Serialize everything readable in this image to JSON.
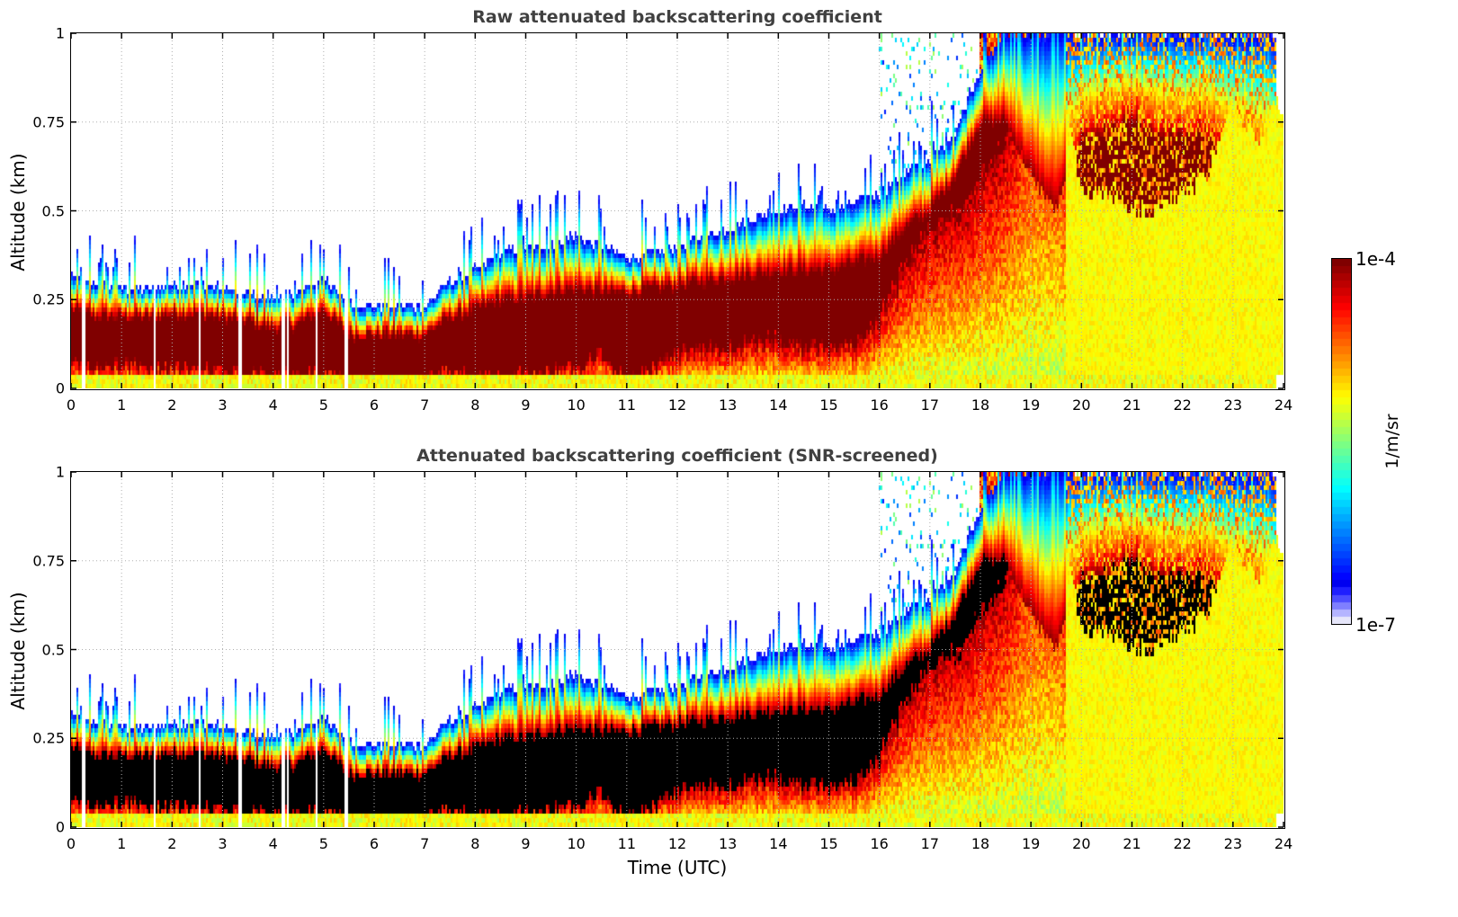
{
  "figure": {
    "xlabel": "Time (UTC)",
    "colorbar": {
      "max_label": "1e-4",
      "min_label": "1e-7",
      "unit_label": "1/m/sr",
      "colormap": "jet",
      "scale": "log",
      "levels": 50,
      "low_colors": [
        "#e6e6fa",
        "#b4b4ff",
        "#7f7fff",
        "#4d4dff",
        "#1f1fff"
      ],
      "saturated_color": "#800000",
      "screened_color": "#000000"
    }
  },
  "chart_data": [
    {
      "type": "heatmap",
      "title": "Raw attenuated backscattering coefficient",
      "xlabel": "",
      "ylabel": "Altitude (km)",
      "xlim": [
        0,
        24
      ],
      "ylim": [
        0,
        1
      ],
      "xticks": [
        "0",
        "1",
        "2",
        "3",
        "4",
        "5",
        "6",
        "7",
        "8",
        "9",
        "10",
        "11",
        "12",
        "13",
        "14",
        "15",
        "16",
        "17",
        "18",
        "19",
        "20",
        "21",
        "22",
        "23",
        "24"
      ],
      "yticks": [
        "0",
        "0.25",
        "0.5",
        "0.75",
        "1"
      ],
      "grid": true,
      "screened": false,
      "time_h": [
        0,
        0.5,
        1,
        1.5,
        2,
        2.5,
        3,
        3.5,
        4,
        4.5,
        5,
        5.5,
        6,
        6.5,
        7,
        7.5,
        8,
        8.5,
        9,
        9.5,
        10,
        10.5,
        11,
        11.5,
        12,
        12.5,
        13,
        13.5,
        14,
        14.5,
        15,
        15.5,
        16,
        16.5,
        17,
        17.5,
        18,
        18.5,
        19,
        19.5,
        20,
        20.5,
        21,
        21.5,
        22,
        22.5,
        23,
        23.5,
        23.85
      ],
      "layer_top_km": [
        0.32,
        0.29,
        0.28,
        0.28,
        0.29,
        0.3,
        0.28,
        0.27,
        0.26,
        0.27,
        0.31,
        0.24,
        0.23,
        0.23,
        0.23,
        0.3,
        0.33,
        0.38,
        0.4,
        0.4,
        0.43,
        0.4,
        0.37,
        0.38,
        0.4,
        0.43,
        0.45,
        0.48,
        0.5,
        0.52,
        0.5,
        0.52,
        0.55,
        0.6,
        0.65,
        0.72,
        0.9,
        1.0,
        1.0,
        1.0,
        1.0,
        1.0,
        1.0,
        1.0,
        1.0,
        1.0,
        1.0,
        1.0,
        1.0
      ],
      "core_top_km": [
        0.22,
        0.2,
        0.2,
        0.2,
        0.21,
        0.21,
        0.2,
        0.19,
        0.17,
        0.18,
        0.22,
        0.15,
        0.15,
        0.15,
        0.15,
        0.2,
        0.22,
        0.25,
        0.25,
        0.27,
        0.28,
        0.27,
        0.27,
        0.28,
        0.29,
        0.3,
        0.31,
        0.32,
        0.33,
        0.33,
        0.33,
        0.35,
        0.37,
        0.45,
        0.5,
        0.6,
        0.75,
        0.75,
        0.6,
        0.5,
        0.7,
        0.72,
        0.75,
        0.7,
        0.7,
        0.7,
        0.65,
        0.6,
        0.55
      ],
      "core_base_km": [
        0.08,
        0.07,
        0.07,
        0.06,
        0.06,
        0.05,
        0.05,
        0.04,
        0.04,
        0.04,
        0.05,
        0.01,
        0.02,
        0.02,
        0.02,
        0.05,
        0.03,
        0.03,
        0.04,
        0.05,
        0.05,
        0.1,
        0.02,
        0.05,
        0.1,
        0.12,
        0.12,
        0.13,
        0.14,
        0.12,
        0.12,
        0.13,
        0.2,
        0.35,
        0.45,
        0.5,
        0.6,
        0.7,
        1.0,
        1.0,
        0.55,
        0.55,
        0.5,
        0.5,
        0.55,
        0.6,
        0.8,
        0.7,
        0.8
      ],
      "note_gaps_h": [
        0.25,
        1.65,
        2.55,
        3.35,
        4.2,
        4.3,
        4.85,
        5.45
      ]
    },
    {
      "type": "heatmap",
      "title": "Attenuated backscattering coefficient (SNR-screened)",
      "xlabel": "Time (UTC)",
      "ylabel": "Altitude (km)",
      "xlim": [
        0,
        24
      ],
      "ylim": [
        0,
        1
      ],
      "xticks": [
        "0",
        "1",
        "2",
        "3",
        "4",
        "5",
        "6",
        "7",
        "8",
        "9",
        "10",
        "11",
        "12",
        "13",
        "14",
        "15",
        "16",
        "17",
        "18",
        "19",
        "20",
        "21",
        "22",
        "23",
        "24"
      ],
      "yticks": [
        "0",
        "0.25",
        "0.5",
        "0.75",
        "1"
      ],
      "grid": true,
      "screened": true
    }
  ]
}
